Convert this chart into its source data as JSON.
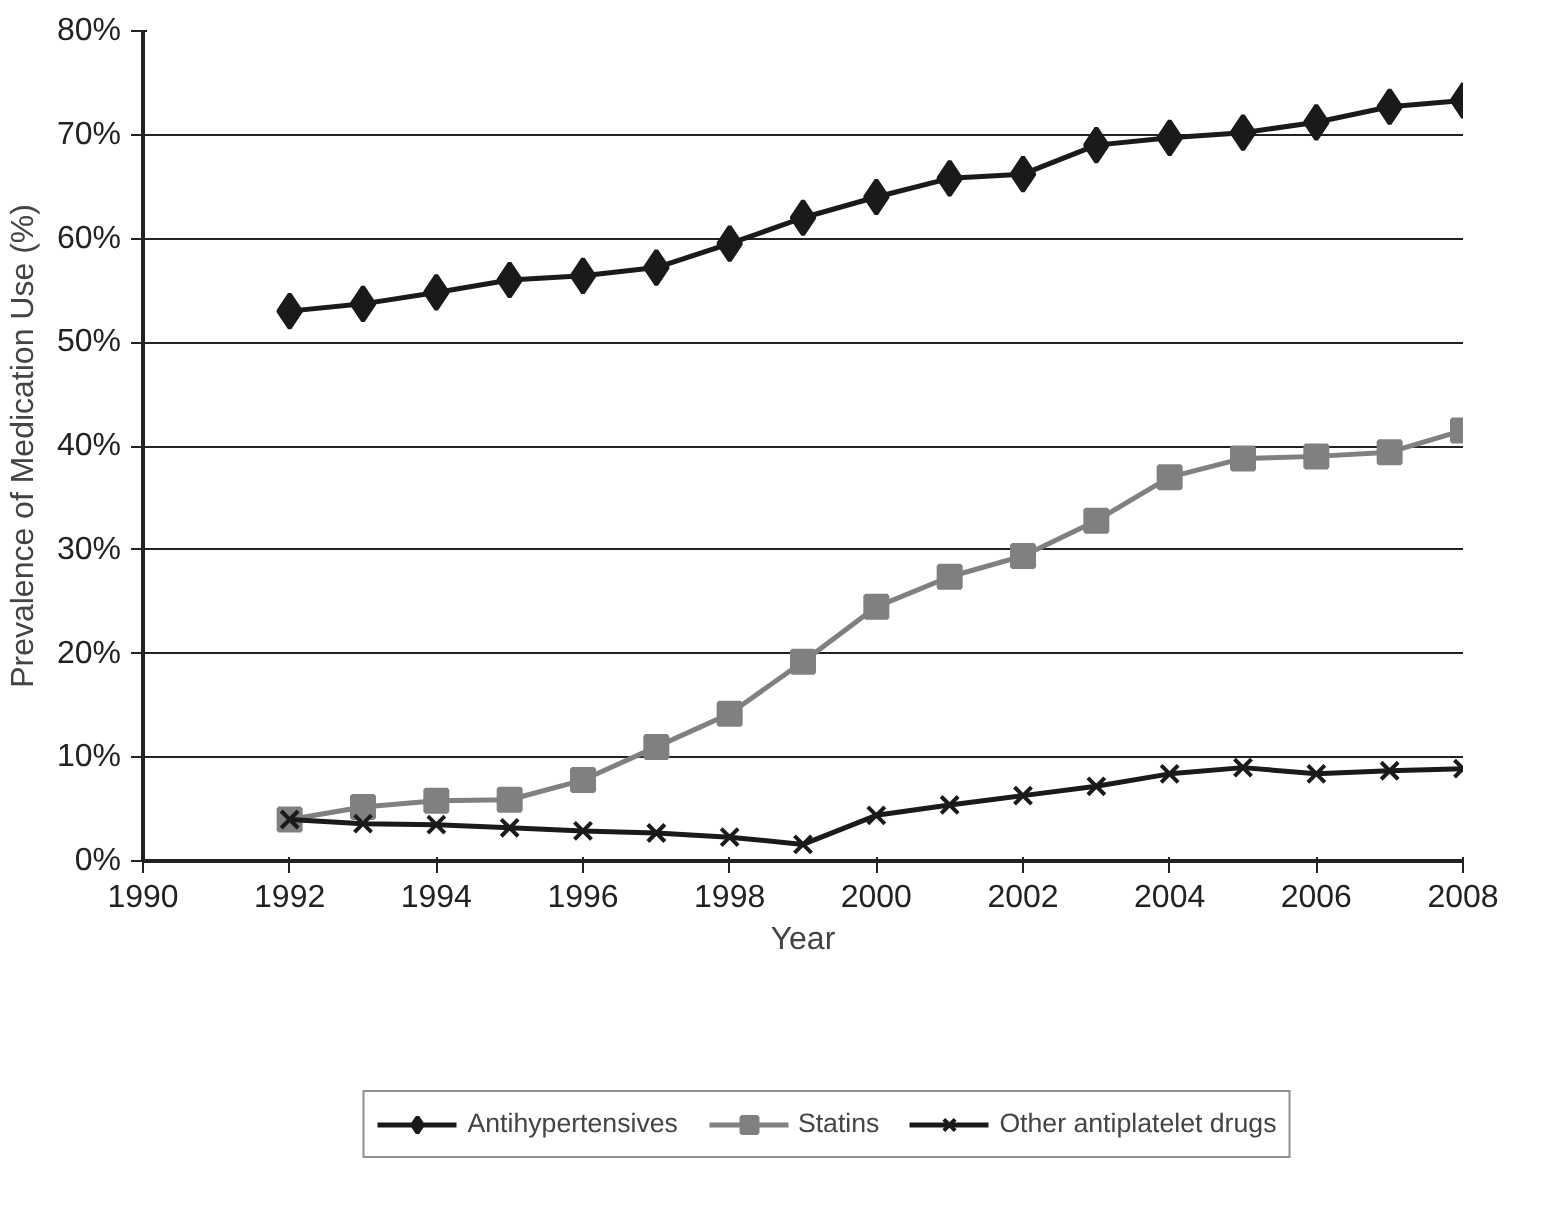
{
  "chart_data": {
    "type": "line",
    "xlabel": "Year",
    "ylabel": "Prevalence of Medication Use (%)",
    "x": [
      1992,
      1993,
      1994,
      1995,
      1996,
      1997,
      1998,
      1999,
      2000,
      2001,
      2002,
      2003,
      2004,
      2005,
      2006,
      2007,
      2008
    ],
    "series": [
      {
        "name": "Antihypertensives",
        "color": "#1a1a1a",
        "marker": "diamond",
        "values": [
          53,
          53.7,
          54.8,
          56,
          56.4,
          57.2,
          59.5,
          62,
          64,
          65.8,
          66.2,
          69,
          69.7,
          70.2,
          71.2,
          72.7,
          73.3
        ]
      },
      {
        "name": "Statins",
        "color": "#808080",
        "marker": "square",
        "values": [
          4,
          5.2,
          5.8,
          5.9,
          7.8,
          11,
          14.2,
          19.2,
          24.5,
          27.4,
          29.4,
          32.8,
          37,
          38.8,
          39,
          39.4,
          41.5
        ]
      },
      {
        "name": "Other antiplatelet drugs",
        "color": "#1a1a1a",
        "marker": "cross",
        "values": [
          4,
          3.6,
          3.5,
          3.2,
          2.9,
          2.7,
          2.3,
          1.6,
          4.4,
          5.4,
          6.3,
          7.2,
          8.4,
          9,
          8.4,
          8.7,
          8.9
        ]
      }
    ],
    "xlim": [
      1990,
      2008
    ],
    "xticks": [
      1990,
      1992,
      1994,
      1996,
      1998,
      2000,
      2002,
      2004,
      2006,
      2008
    ],
    "ylim": [
      0,
      80
    ],
    "yticks": [
      {
        "value": 0,
        "label": "0%"
      },
      {
        "value": 10,
        "label": "10%"
      },
      {
        "value": 20,
        "label": "20%"
      },
      {
        "value": 30,
        "label": "30%"
      },
      {
        "value": 40,
        "label": "40%"
      },
      {
        "value": 50,
        "label": "50%"
      },
      {
        "value": 60,
        "label": "60%"
      },
      {
        "value": 70,
        "label": "70%"
      },
      {
        "value": 80,
        "label": "80%"
      }
    ],
    "grid": "y",
    "legend": "bottom",
    "line_style": "solid"
  }
}
